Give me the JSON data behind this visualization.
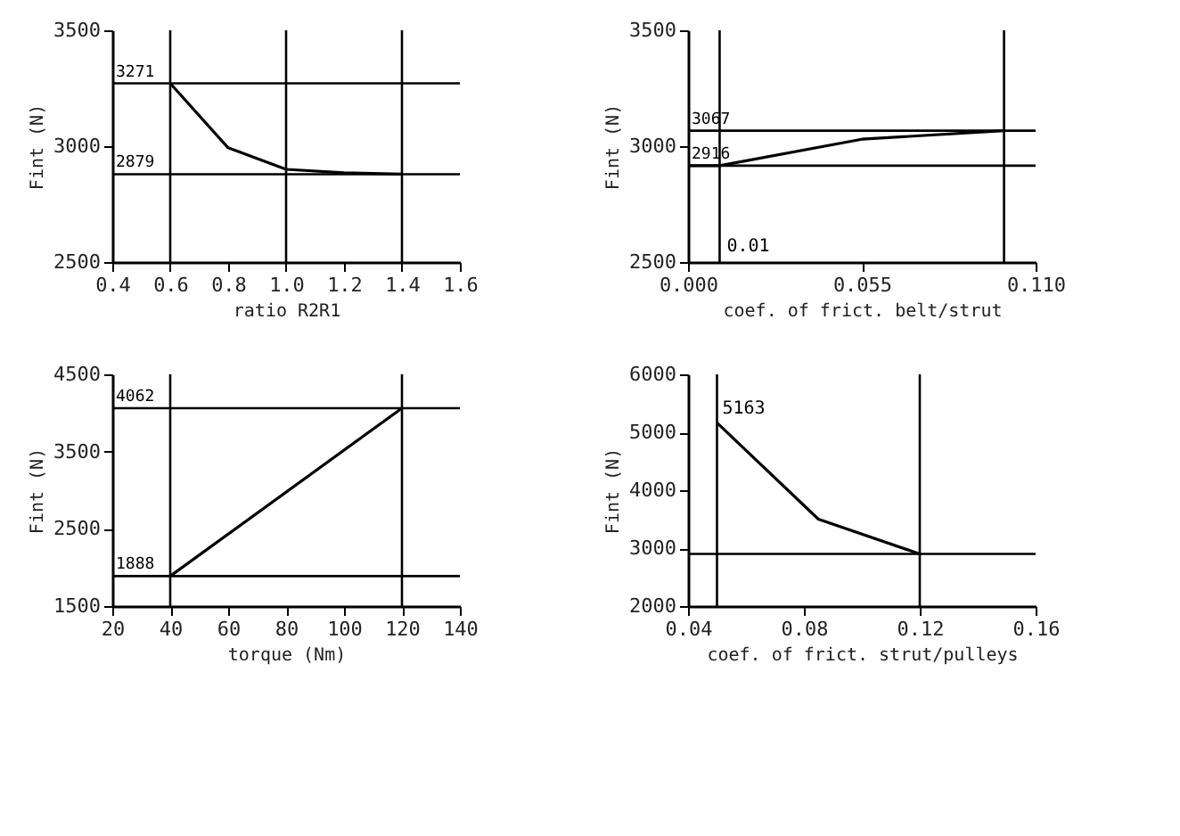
{
  "chart_data": [
    {
      "type": "line",
      "xlabel": "ratio R2R1",
      "ylabel": "Fint (N)",
      "xlim": [
        0.4,
        1.6
      ],
      "xticks": [
        0.4,
        0.6,
        0.8,
        {
          "value": 1.0,
          "label": "1.0"
        },
        1.2,
        1.4,
        1.6
      ],
      "ylim": [
        2500,
        3500
      ],
      "yticks": [
        2500,
        3000,
        3500
      ],
      "series": [
        {
          "color": "#000000",
          "x": [
            0.6,
            0.8,
            1.0,
            1.2,
            1.4
          ],
          "values": [
            3271,
            2993,
            2900,
            2885,
            2879
          ]
        }
      ],
      "ref_lines": [
        {
          "axis": "y",
          "value": 3271,
          "label": "3271"
        },
        {
          "axis": "y",
          "value": 2879,
          "label": "2879"
        },
        {
          "axis": "x",
          "value": 0.6
        },
        {
          "axis": "x",
          "value": 1.0
        },
        {
          "axis": "x",
          "value": 1.4
        }
      ]
    },
    {
      "type": "line",
      "xlabel": "coef. of frict. belt/strut",
      "ylabel": "Fint (N)",
      "xlim": [
        0,
        0.11
      ],
      "xticks": [
        {
          "value": 0,
          "label": "0.000"
        },
        0.055,
        {
          "value": 0.11,
          "label": "0.110"
        }
      ],
      "ylim": [
        2500,
        3500
      ],
      "yticks": [
        2500,
        3000,
        3500
      ],
      "series": [
        {
          "color": "#000000",
          "x": [
            0,
            0.01,
            0.055,
            0.1
          ],
          "values": [
            2916,
            2916,
            3030,
            3067
          ]
        }
      ],
      "ref_lines": [
        {
          "axis": "y",
          "value": 3067,
          "label": "3067"
        },
        {
          "axis": "y",
          "value": 2916,
          "label": "2916"
        },
        {
          "axis": "x",
          "value": 0.01,
          "label": "0.01"
        },
        {
          "axis": "x",
          "value": 0.1
        }
      ]
    },
    {
      "type": "line",
      "xlabel": "torque (Nm)",
      "ylabel": "Fint (N)",
      "xlim": [
        20,
        140
      ],
      "xticks": [
        20,
        40,
        60,
        80,
        100,
        120,
        140
      ],
      "ylim": [
        1500,
        4500
      ],
      "yticks": [
        1500,
        2500,
        3500,
        4500
      ],
      "series": [
        {
          "color": "#000000",
          "x": [
            40,
            120
          ],
          "values": [
            1888,
            4062
          ]
        }
      ],
      "ref_lines": [
        {
          "axis": "y",
          "value": 4062,
          "label": "4062"
        },
        {
          "axis": "y",
          "value": 1888,
          "label": "1888"
        },
        {
          "axis": "x",
          "value": 40
        },
        {
          "axis": "x",
          "value": 120
        }
      ]
    },
    {
      "type": "line",
      "xlabel": "coef. of frict. strut/pulleys",
      "ylabel": "Fint (N)",
      "xlim": [
        0.04,
        0.16
      ],
      "xticks": [
        0.04,
        0.08,
        0.12,
        0.16
      ],
      "ylim": [
        2000,
        6000
      ],
      "yticks": [
        2000,
        3000,
        4000,
        5000,
        6000
      ],
      "series": [
        {
          "color": "#000000",
          "x": [
            0.05,
            0.085,
            0.12
          ],
          "values": [
            5163,
            3500,
            2900
          ]
        }
      ],
      "ref_lines": [
        {
          "axis": "y",
          "value": 2900
        },
        {
          "axis": "x",
          "value": 0.05
        },
        {
          "axis": "x",
          "value": 0.12
        }
      ],
      "annotations": [
        {
          "text": "5163",
          "x": 0.05,
          "y": 5163
        }
      ]
    }
  ]
}
